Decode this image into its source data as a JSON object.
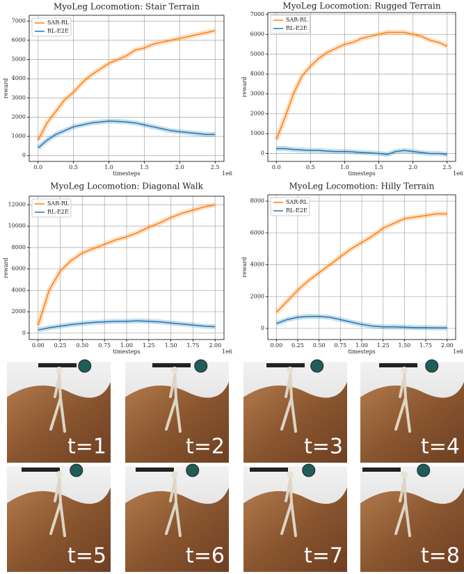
{
  "chart_data": [
    {
      "type": "line",
      "title": "MyoLeg Locomotion: Stair Terrain",
      "xlabel": "timesteps",
      "ylabel": "reward",
      "x_offset_label": "1e6",
      "x": [
        0,
        0.125,
        0.25,
        0.375,
        0.5,
        0.625,
        0.75,
        0.875,
        1.0,
        1.125,
        1.25,
        1.375,
        1.5,
        1.625,
        1.75,
        1.875,
        2.0,
        2.125,
        2.25,
        2.375,
        2.5
      ],
      "series": [
        {
          "name": "SAR-RL",
          "color": "#ff7f0e",
          "values": [
            800,
            1700,
            2300,
            2900,
            3300,
            3800,
            4200,
            4500,
            4800,
            5000,
            5200,
            5500,
            5600,
            5800,
            5900,
            6000,
            6100,
            6200,
            6300,
            6400,
            6500
          ]
        },
        {
          "name": "RL-E2E",
          "color": "#1f77b4",
          "values": [
            400,
            800,
            1100,
            1300,
            1500,
            1600,
            1700,
            1750,
            1800,
            1780,
            1750,
            1700,
            1600,
            1500,
            1400,
            1300,
            1250,
            1200,
            1150,
            1100,
            1100
          ]
        }
      ],
      "xlim": [
        -0.125,
        2.625
      ],
      "xticks": [
        {
          "value": 0,
          "label": "0.0"
        },
        0.5,
        {
          "value": 1,
          "label": "1.0"
        },
        1.5,
        {
          "value": 2,
          "label": "2.0"
        },
        2.5
      ],
      "ylim": [
        -300,
        7300
      ],
      "yticks": [
        0,
        1000,
        2000,
        3000,
        4000,
        5000,
        6000,
        7000
      ],
      "grid": true,
      "legend": "upper-left"
    },
    {
      "type": "line",
      "title": "MyoLeg Locomotion: Rugged Terrain",
      "xlabel": "timesteps",
      "ylabel": "reward",
      "x_offset_label": "1e6",
      "x": [
        0,
        0.125,
        0.25,
        0.375,
        0.5,
        0.625,
        0.75,
        0.875,
        1.0,
        1.125,
        1.25,
        1.375,
        1.5,
        1.625,
        1.75,
        1.875,
        2.0,
        2.125,
        2.25,
        2.375,
        2.5
      ],
      "series": [
        {
          "name": "SAR-RL",
          "color": "#ff7f0e",
          "values": [
            700,
            1800,
            3000,
            3900,
            4400,
            4800,
            5100,
            5300,
            5500,
            5600,
            5800,
            5900,
            6000,
            6100,
            6100,
            6100,
            6000,
            5900,
            5700,
            5600,
            5400
          ]
        },
        {
          "name": "RL-E2E",
          "color": "#1f77b4",
          "values": [
            250,
            250,
            200,
            180,
            150,
            150,
            120,
            100,
            100,
            80,
            50,
            30,
            0,
            -50,
            100,
            150,
            100,
            50,
            0,
            0,
            -50
          ]
        }
      ],
      "xlim": [
        -0.125,
        2.625
      ],
      "xticks": [
        {
          "value": 0,
          "label": "0.0"
        },
        0.5,
        {
          "value": 1,
          "label": "1.0"
        },
        1.5,
        {
          "value": 2,
          "label": "2.0"
        },
        2.5
      ],
      "ylim": [
        -400,
        7100
      ],
      "yticks": [
        0,
        1000,
        2000,
        3000,
        4000,
        5000,
        6000,
        7000
      ],
      "grid": true,
      "legend": "upper-left"
    },
    {
      "type": "line",
      "title": "MyoLeg Locomotion: Diagonal Walk",
      "xlabel": "timesteps",
      "ylabel": "reward",
      "x_offset_label": "1e6",
      "x": [
        0,
        0.125,
        0.25,
        0.375,
        0.5,
        0.625,
        0.75,
        0.875,
        1.0,
        1.125,
        1.25,
        1.375,
        1.5,
        1.625,
        1.75,
        1.875,
        2.0
      ],
      "series": [
        {
          "name": "SAR-RL",
          "color": "#ff7f0e",
          "values": [
            700,
            4000,
            5800,
            6800,
            7500,
            7900,
            8300,
            8700,
            9000,
            9400,
            9900,
            10300,
            10800,
            11200,
            11500,
            11800,
            12000
          ]
        },
        {
          "name": "RL-E2E",
          "color": "#1f77b4",
          "values": [
            300,
            500,
            650,
            800,
            900,
            1000,
            1050,
            1100,
            1100,
            1150,
            1100,
            1050,
            950,
            850,
            750,
            650,
            600
          ]
        }
      ],
      "xlim": [
        -0.1,
        2.1
      ],
      "xticks": [
        {
          "value": 0,
          "label": "0.00"
        },
        0.25,
        {
          "value": 0.5,
          "label": "0.50"
        },
        0.75,
        {
          "value": 1,
          "label": "1.00"
        },
        1.25,
        {
          "value": 1.5,
          "label": "1.50"
        },
        1.75,
        {
          "value": 2,
          "label": "2.00"
        }
      ],
      "ylim": [
        -600,
        12800
      ],
      "yticks": [
        0,
        2000,
        4000,
        6000,
        8000,
        10000,
        12000
      ],
      "grid": true,
      "legend": "upper-left"
    },
    {
      "type": "line",
      "title": "MyoLeg Locomotion: Hilly Terrain",
      "xlabel": "timesteps",
      "ylabel": "reward",
      "x_offset_label": "1e6",
      "x": [
        0,
        0.125,
        0.25,
        0.375,
        0.5,
        0.625,
        0.75,
        0.875,
        1.0,
        1.125,
        1.25,
        1.375,
        1.5,
        1.625,
        1.75,
        1.875,
        2.0
      ],
      "series": [
        {
          "name": "SAR-RL",
          "color": "#ff7f0e",
          "values": [
            1000,
            1700,
            2400,
            3000,
            3500,
            4000,
            4500,
            5000,
            5400,
            5800,
            6300,
            6600,
            6900,
            7000,
            7100,
            7200,
            7200
          ]
        },
        {
          "name": "RL-E2E",
          "color": "#1f77b4",
          "values": [
            300,
            550,
            700,
            750,
            750,
            700,
            550,
            400,
            250,
            150,
            100,
            100,
            80,
            50,
            50,
            30,
            30
          ]
        }
      ],
      "xlim": [
        -0.1,
        2.1
      ],
      "xticks": [
        {
          "value": 0,
          "label": "0.00"
        },
        0.25,
        {
          "value": 0.5,
          "label": "0.50"
        },
        0.75,
        {
          "value": 1,
          "label": "1.00"
        },
        1.25,
        {
          "value": 1.5,
          "label": "1.50"
        },
        1.75,
        {
          "value": 2,
          "label": "2.00"
        }
      ],
      "ylim": [
        -700,
        8400
      ],
      "yticks": [
        0,
        2000,
        4000,
        6000,
        8000
      ],
      "grid": true,
      "legend": "upper-left"
    }
  ],
  "frames": [
    {
      "label": "t=1"
    },
    {
      "label": "t=2"
    },
    {
      "label": "t=3"
    },
    {
      "label": "t=4"
    },
    {
      "label": "t=5"
    },
    {
      "label": "t=6"
    },
    {
      "label": "t=7"
    },
    {
      "label": "t=8"
    }
  ]
}
